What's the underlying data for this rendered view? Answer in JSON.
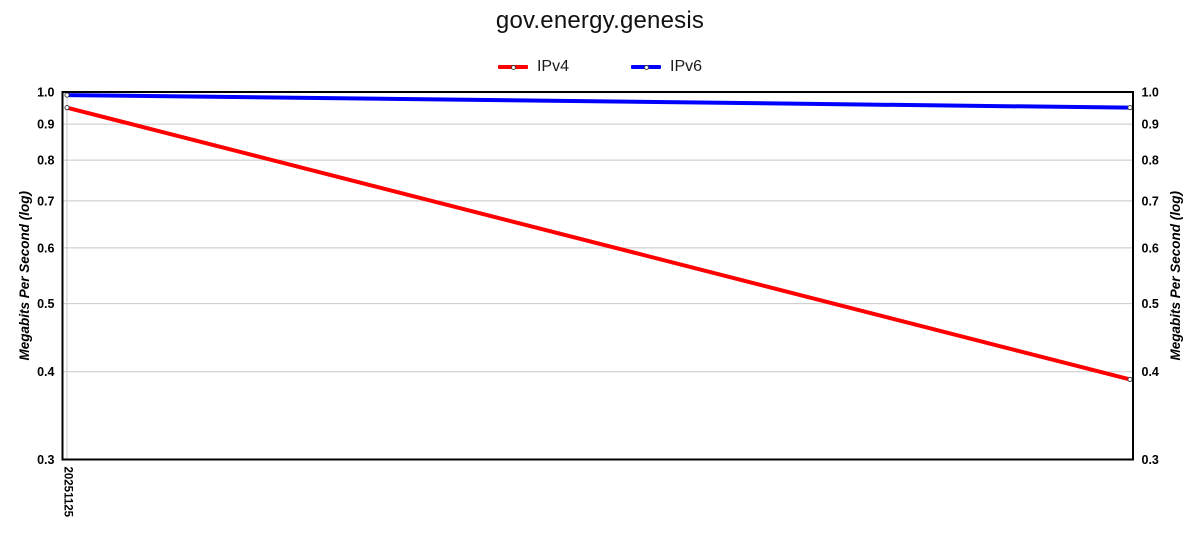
{
  "header": {
    "title": "gov.energy.genesis"
  },
  "legend": {
    "items": [
      {
        "label": "IPv4",
        "color": "#ff0000"
      },
      {
        "label": "IPv6",
        "color": "#0000ff"
      }
    ]
  },
  "colors": {
    "grid": "#c8c8c8",
    "frame": "#000000",
    "marker_fill": "#ffffff",
    "marker_edge": "#333333"
  },
  "chart_data": {
    "type": "line",
    "title": "gov.energy.genesis",
    "x": [
      "20251125",
      ""
    ],
    "x_tick_labels": [
      "20251125"
    ],
    "series": [
      {
        "name": "IPv4",
        "color": "#ff0000",
        "values": [
          0.95,
          0.39
        ]
      },
      {
        "name": "IPv6",
        "color": "#0000ff",
        "values": [
          0.99,
          0.95
        ]
      }
    ],
    "ylabel": "Megabits Per Second (log)",
    "ylabel_right": "Megabits Per Second (log)",
    "xlabel": "",
    "yscale": "log",
    "ylim": [
      0.3,
      1.0
    ],
    "y_ticks": [
      1.0,
      0.9,
      0.8,
      0.7,
      0.6,
      0.5,
      0.4,
      0.3
    ],
    "y_tick_labels": [
      "1.0",
      "0.9",
      "0.8",
      "0.7",
      "0.6",
      "0.5",
      "0.4",
      "0.3"
    ],
    "grid": true,
    "legend_position": "top-center",
    "mirrored_right_axis": true
  }
}
